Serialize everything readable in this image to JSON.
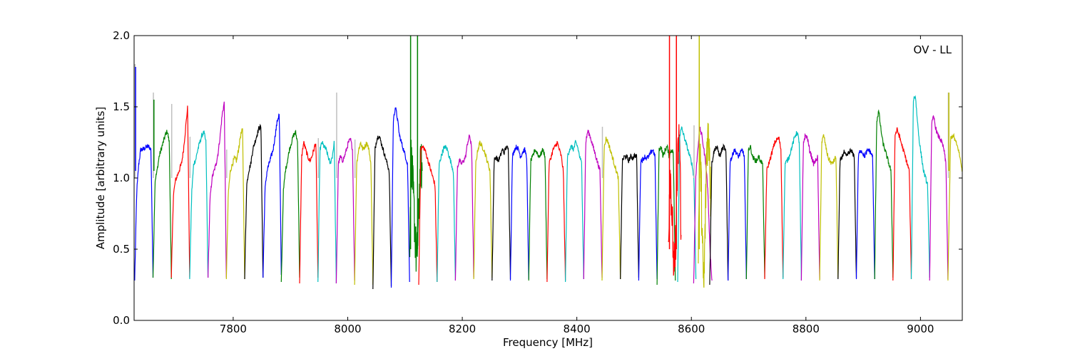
{
  "chart_data": {
    "type": "line",
    "annotation": "OV - LL",
    "xlabel": "Frequency [MHz]",
    "ylabel": "Amplitude [arbitrary units]",
    "xlim": [
      7627,
      9073
    ],
    "ylim": [
      0.0,
      2.0
    ],
    "xticks": [
      7800,
      8000,
      8200,
      8400,
      8600,
      8800,
      9000
    ],
    "yticks": [
      0.0,
      0.5,
      1.0,
      1.5,
      2.0
    ],
    "ytick_labels": [
      "0.0",
      "0.5",
      "1.0",
      "1.5",
      "2.0"
    ],
    "grid": false,
    "colors": [
      "#0000ff",
      "#008000",
      "#ff0000",
      "#00bfbf",
      "#bf00bf",
      "#bfbf00",
      "#000000"
    ],
    "flag_color": "#bfbfbf",
    "channel_width_mhz": 32,
    "series": [
      {
        "x0": 7628,
        "shape": [
          0.28,
          0.9,
          1.1,
          1.2,
          1.2,
          1.21,
          1.22,
          1.22,
          1.2,
          0.3
        ],
        "flag": 1.8,
        "spike": 1.78
      },
      {
        "x0": 7660,
        "shape": [
          0.3,
          0.98,
          1.05,
          1.15,
          1.2,
          1.25,
          1.3,
          1.33,
          1.25,
          0.29
        ],
        "flag": 1.6,
        "spike": 1.55
      },
      {
        "x0": 7692,
        "shape": [
          0.3,
          0.88,
          0.98,
          1.02,
          1.06,
          1.1,
          1.2,
          1.35,
          1.5,
          0.3
        ],
        "flag": 1.52
      },
      {
        "x0": 7724,
        "shape": [
          0.29,
          0.9,
          1.1,
          1.13,
          1.2,
          1.25,
          1.3,
          1.32,
          1.25,
          0.3
        ],
        "flag": 1.29
      },
      {
        "x0": 7756,
        "shape": [
          0.3,
          0.85,
          1.0,
          1.05,
          1.1,
          1.18,
          1.3,
          1.45,
          1.53,
          0.3
        ]
      },
      {
        "x0": 7788,
        "shape": [
          0.29,
          0.9,
          1.05,
          1.1,
          1.14,
          1.12,
          1.2,
          1.3,
          1.34,
          0.29
        ],
        "flag": 1.2
      },
      {
        "x0": 7820,
        "shape": [
          0.29,
          0.95,
          1.05,
          1.1,
          1.2,
          1.25,
          1.3,
          1.35,
          1.36,
          0.3
        ]
      },
      {
        "x0": 7852,
        "shape": [
          0.3,
          0.92,
          1.05,
          1.1,
          1.15,
          1.2,
          1.3,
          1.4,
          1.45,
          0.32
        ]
      },
      {
        "x0": 7884,
        "shape": [
          0.27,
          0.9,
          1.05,
          1.12,
          1.2,
          1.25,
          1.3,
          1.32,
          1.25,
          0.3
        ]
      },
      {
        "x0": 7916,
        "shape": [
          0.26,
          1.15,
          1.25,
          1.2,
          1.15,
          1.12,
          1.15,
          1.2,
          1.25,
          0.3
        ]
      },
      {
        "x0": 7948,
        "shape": [
          0.27,
          1.2,
          1.25,
          1.22,
          1.2,
          1.15,
          1.1,
          1.15,
          1.25,
          0.26
        ],
        "flag": 1.28
      },
      {
        "x0": 7980,
        "shape": [
          0.26,
          1.1,
          1.15,
          1.12,
          1.15,
          1.2,
          1.25,
          1.27,
          1.2,
          0.28
        ],
        "flag": 1.6
      },
      {
        "x0": 8012,
        "shape": [
          0.25,
          1.1,
          1.2,
          1.25,
          1.2,
          1.22,
          1.25,
          1.2,
          1.1,
          0.25
        ],
        "flag": 1.27
      },
      {
        "x0": 8044,
        "shape": [
          0.22,
          1.2,
          1.28,
          1.3,
          1.25,
          1.2,
          1.15,
          1.1,
          1.05,
          0.24
        ]
      },
      {
        "x0": 8076,
        "shape": [
          0.23,
          1.4,
          1.5,
          1.42,
          1.3,
          1.25,
          1.2,
          1.15,
          1.1,
          0.27
        ]
      },
      {
        "x0": 8108,
        "shape": [
          0.5,
          1.15,
          1.0,
          0.8,
          0.6,
          0.4,
          0.6,
          0.9,
          1.1,
          1.05
        ],
        "noisy": true,
        "spikes": [
          2.05,
          2.05
        ]
      },
      {
        "x0": 8124,
        "shape": [
          0.25,
          1.2,
          1.22,
          1.2,
          1.15,
          1.1,
          1.05,
          1.0,
          0.95,
          0.27
        ]
      },
      {
        "x0": 8156,
        "shape": [
          0.27,
          1.1,
          1.15,
          1.2,
          1.22,
          1.2,
          1.15,
          1.1,
          1.05,
          0.28
        ]
      },
      {
        "x0": 8188,
        "shape": [
          0.28,
          1.08,
          1.12,
          1.1,
          1.12,
          1.15,
          1.25,
          1.3,
          1.2,
          0.3
        ]
      },
      {
        "x0": 8220,
        "shape": [
          0.29,
          1.1,
          1.2,
          1.25,
          1.22,
          1.2,
          1.15,
          1.1,
          1.05,
          0.3
        ]
      },
      {
        "x0": 8252,
        "shape": [
          0.28,
          1.12,
          1.15,
          1.12,
          1.15,
          1.2,
          1.18,
          1.22,
          1.2,
          0.29
        ]
      },
      {
        "x0": 8284,
        "shape": [
          0.28,
          1.15,
          1.2,
          1.22,
          1.2,
          1.15,
          1.18,
          1.2,
          1.15,
          0.29
        ]
      },
      {
        "x0": 8316,
        "shape": [
          0.28,
          1.12,
          1.15,
          1.2,
          1.18,
          1.15,
          1.17,
          1.2,
          1.15,
          0.29
        ]
      },
      {
        "x0": 8348,
        "shape": [
          0.27,
          1.1,
          1.15,
          1.2,
          1.22,
          1.25,
          1.2,
          1.15,
          1.05,
          0.28
        ]
      },
      {
        "x0": 8380,
        "shape": [
          0.27,
          1.15,
          1.2,
          1.22,
          1.2,
          1.25,
          1.22,
          1.15,
          1.1,
          0.29
        ]
      },
      {
        "x0": 8412,
        "shape": [
          0.29,
          1.25,
          1.33,
          1.3,
          1.25,
          1.2,
          1.15,
          1.1,
          1.05,
          0.3
        ]
      },
      {
        "x0": 8444,
        "shape": [
          0.28,
          1.2,
          1.28,
          1.25,
          1.2,
          1.15,
          1.1,
          1.05,
          1.0,
          0.29
        ],
        "flag": 1.36
      },
      {
        "x0": 8476,
        "shape": [
          0.29,
          1.12,
          1.15,
          1.15,
          1.12,
          1.15,
          1.14,
          1.16,
          1.15,
          0.3
        ]
      },
      {
        "x0": 8508,
        "shape": [
          0.28,
          1.12,
          1.13,
          1.15,
          1.14,
          1.15,
          1.18,
          1.2,
          1.15,
          0.29
        ]
      },
      {
        "x0": 8540,
        "shape": [
          0.25,
          1.2,
          1.22,
          1.15,
          1.2,
          1.22,
          1.15,
          1.2,
          1.18,
          0.28
        ]
      },
      {
        "x0": 8560,
        "shape": [
          0.55,
          1.1,
          0.9,
          0.6,
          0.3,
          0.5,
          0.9,
          1.2,
          1.3,
          0.6
        ],
        "noisy": true,
        "spikes": [
          2.05,
          2.05
        ]
      },
      {
        "x0": 8576,
        "shape": [
          0.27,
          1.3,
          1.35,
          1.3,
          1.25,
          1.2,
          1.15,
          1.1,
          1.0,
          0.29
        ]
      },
      {
        "x0": 8604,
        "shape": [
          0.26,
          1.0,
          1.2,
          1.35,
          1.3,
          1.2,
          1.1,
          0.9,
          0.5,
          0.28
        ],
        "flag": 1.37
      },
      {
        "x0": 8612,
        "shape": [
          0.4,
          1.2,
          1.0,
          0.5,
          0.21,
          0.7,
          1.2,
          1.3,
          1.25,
          0.8
        ],
        "noisy": true,
        "spikes": [
          2.05
        ]
      },
      {
        "x0": 8632,
        "shape": [
          0.25,
          1.1,
          1.18,
          1.22,
          1.2,
          1.15,
          1.2,
          1.22,
          1.18,
          0.28
        ]
      },
      {
        "x0": 8664,
        "shape": [
          0.28,
          1.12,
          1.15,
          1.2,
          1.18,
          1.15,
          1.17,
          1.2,
          1.15,
          0.29
        ]
      },
      {
        "x0": 8696,
        "shape": [
          0.29,
          1.2,
          1.22,
          1.15,
          1.13,
          1.12,
          1.15,
          1.12,
          1.1,
          0.3
        ]
      },
      {
        "x0": 8728,
        "shape": [
          0.29,
          1.05,
          1.1,
          1.15,
          1.2,
          1.25,
          1.27,
          1.28,
          1.2,
          0.3
        ]
      },
      {
        "x0": 8760,
        "shape": [
          0.29,
          1.1,
          1.12,
          1.15,
          1.2,
          1.25,
          1.3,
          1.32,
          1.25,
          0.28
        ]
      },
      {
        "x0": 8792,
        "shape": [
          0.28,
          1.25,
          1.3,
          1.28,
          1.2,
          1.15,
          1.1,
          1.12,
          1.15,
          0.29
        ]
      },
      {
        "x0": 8824,
        "shape": [
          0.28,
          1.25,
          1.3,
          1.22,
          1.15,
          1.12,
          1.1,
          1.12,
          1.15,
          0.3
        ]
      },
      {
        "x0": 8856,
        "shape": [
          0.29,
          1.12,
          1.15,
          1.18,
          1.15,
          1.17,
          1.19,
          1.18,
          1.15,
          0.3
        ]
      },
      {
        "x0": 8888,
        "shape": [
          0.29,
          1.15,
          1.2,
          1.18,
          1.15,
          1.18,
          1.2,
          1.18,
          1.15,
          0.29
        ]
      },
      {
        "x0": 8920,
        "shape": [
          0.29,
          1.4,
          1.47,
          1.35,
          1.25,
          1.2,
          1.15,
          1.1,
          1.05,
          0.3
        ]
      },
      {
        "x0": 8952,
        "shape": [
          0.28,
          1.3,
          1.34,
          1.3,
          1.25,
          1.2,
          1.15,
          1.1,
          1.05,
          0.29
        ]
      },
      {
        "x0": 8984,
        "shape": [
          0.29,
          1.55,
          1.58,
          1.4,
          1.25,
          1.15,
          1.05,
          1.0,
          0.95,
          0.3
        ]
      },
      {
        "x0": 9016,
        "shape": [
          0.28,
          1.38,
          1.43,
          1.35,
          1.3,
          1.28,
          1.25,
          1.2,
          1.1,
          0.29
        ]
      },
      {
        "x0": 9048,
        "shape": [
          0.28,
          1.28,
          1.3,
          1.25,
          1.2,
          1.1,
          1.0,
          0.5
        ],
        "flag": 1.6,
        "spike": 1.6
      }
    ]
  }
}
